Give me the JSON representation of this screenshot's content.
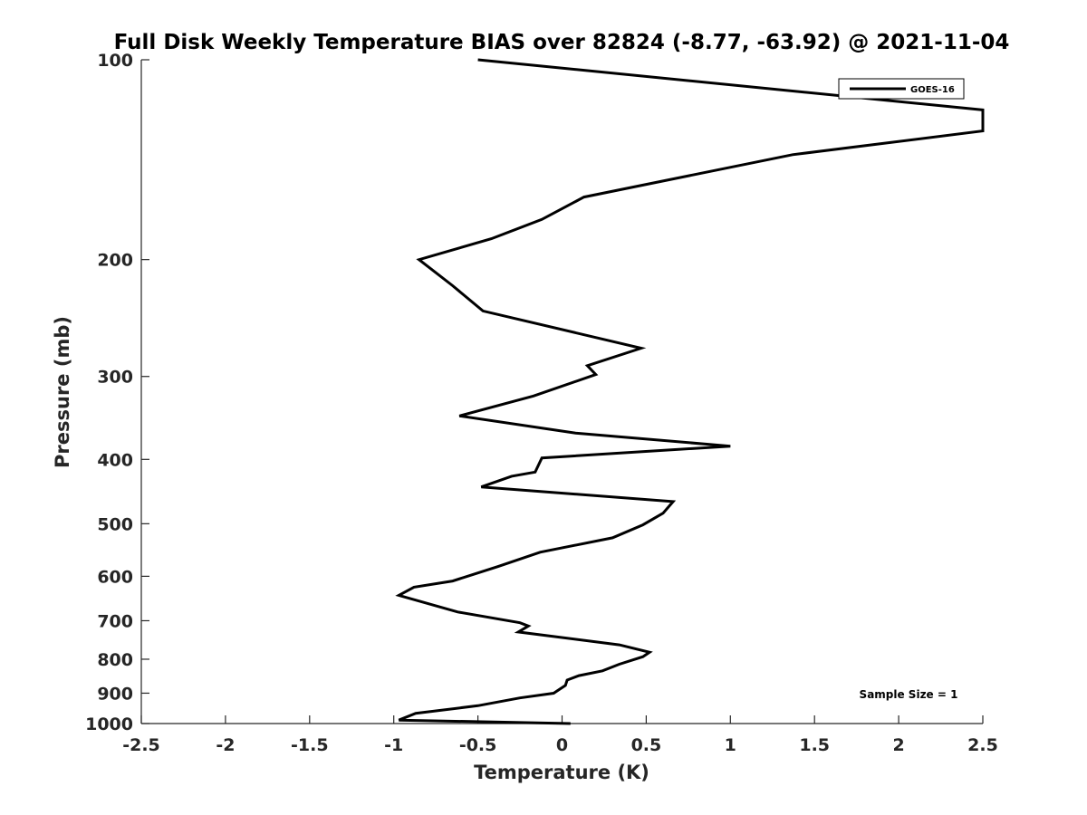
{
  "chart_data": {
    "type": "line",
    "title": "Full Disk Weekly Temperature BIAS over 82824 (-8.77, -63.92) @ 2021-11-04",
    "xlabel": "Temperature (K)",
    "ylabel": "Pressure (mb)",
    "xlim": [
      -2.5,
      2.5
    ],
    "ylim": [
      100,
      1000
    ],
    "y_scale": "log",
    "y_reversed": true,
    "x_ticks": [
      -2.5,
      -2,
      -1.5,
      -1,
      -0.5,
      0,
      0.5,
      1,
      1.5,
      2,
      2.5
    ],
    "x_tick_labels": [
      "-2.5",
      "-2",
      "-1.5",
      "-1",
      "-0.5",
      "0",
      "0.5",
      "1",
      "1.5",
      "2",
      "2.5"
    ],
    "y_ticks": [
      100,
      200,
      300,
      400,
      500,
      600,
      700,
      800,
      900,
      1000
    ],
    "y_tick_labels": [
      "100",
      "200",
      "300",
      "400",
      "500",
      "600",
      "700",
      "800",
      "900",
      "1000"
    ],
    "grid": false,
    "legend_position": "top-right",
    "annotation": "Sample Size = 1",
    "series": [
      {
        "name": "GOES-16",
        "color": "#000000",
        "x": [
          -0.5,
          2.5,
          2.5,
          1.37,
          0.13,
          -0.12,
          -0.42,
          -0.85,
          -0.65,
          -0.47,
          0.47,
          0.15,
          0.2,
          -0.17,
          -0.61,
          0.08,
          1.0,
          -0.12,
          -0.16,
          -0.3,
          -0.48,
          0.66,
          0.6,
          0.48,
          0.3,
          -0.13,
          -0.38,
          -0.65,
          -0.88,
          -0.97,
          -0.62,
          -0.25,
          -0.2,
          -0.26,
          0.34,
          0.52,
          0.48,
          0.34,
          0.24,
          0.1,
          0.03,
          0.02,
          -0.05,
          -0.25,
          -0.5,
          -0.87,
          -0.97,
          0.05
        ],
        "y": [
          100,
          119,
          128,
          139,
          161,
          174,
          186,
          200,
          219,
          239,
          272,
          289,
          298,
          321,
          344,
          365,
          382,
          398,
          418,
          424,
          440,
          463,
          482,
          502,
          525,
          552,
          580,
          610,
          623,
          641,
          679,
          705,
          713,
          728,
          761,
          781,
          793,
          814,
          833,
          847,
          860,
          876,
          900,
          915,
          940,
          965,
          988,
          1000
        ]
      }
    ]
  }
}
